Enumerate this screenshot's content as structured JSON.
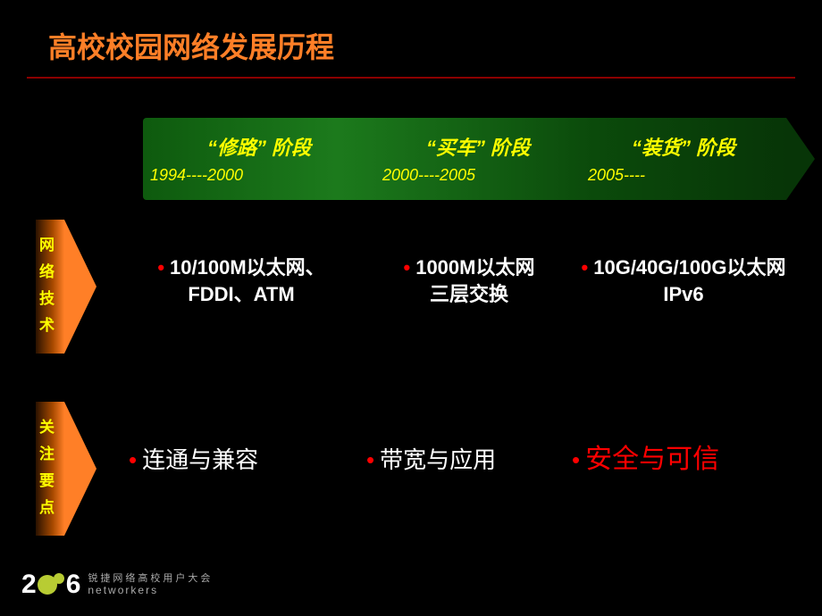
{
  "title": "高校校园网络发展历程",
  "colors": {
    "title": "#ff7f27",
    "underline": "#8b0000",
    "timeline_gradient": [
      "#0e5a0e",
      "#1c7a1c",
      "#0b4a0b",
      "#073507"
    ],
    "timeline_text": "#ffff00",
    "side_gradient": [
      "#2a1200",
      "#a84a00",
      "#ff7f27"
    ],
    "side_text": "#ffff00",
    "body_text": "#ffffff",
    "bullet": "#ff0000",
    "highlight": "#ff0000",
    "background": "#000000"
  },
  "timeline": {
    "segments": [
      {
        "title": "“修路” 阶段",
        "range": "1994----2000"
      },
      {
        "title": "“买车” 阶段",
        "range": "2000----2005"
      },
      {
        "title": "“装货” 阶段",
        "range": "2005----"
      }
    ]
  },
  "rows": [
    {
      "label": "网络技术",
      "cells": [
        {
          "line1": "10/100M以太网、",
          "line2": "FDDI、ATM"
        },
        {
          "line1": "1000M以太网",
          "line2": "三层交换"
        },
        {
          "line1": "10G/40G/100G以太网",
          "line2": "IPv6"
        }
      ]
    },
    {
      "label": "关注要点",
      "cells": [
        {
          "line1": "连通与兼容",
          "highlight": false
        },
        {
          "line1": "带宽与应用",
          "highlight": false
        },
        {
          "line1": "安全与可信",
          "highlight": true
        }
      ]
    }
  ],
  "footer": {
    "cn": "锐捷网络高校用户大会",
    "en": "networkers",
    "year_left": "2",
    "year_right": "6"
  }
}
